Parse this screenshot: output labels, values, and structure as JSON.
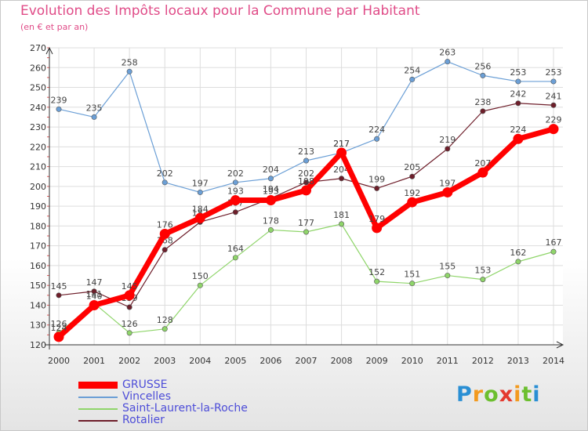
{
  "chart_data": {
    "type": "line",
    "title": "Evolution des Impôts locaux pour la Commune par Habitant",
    "subtitle": "(en € et par an)",
    "x": [
      "2000",
      "2001",
      "2002",
      "2003",
      "2004",
      "2005",
      "2006",
      "2007",
      "2008",
      "2009",
      "2010",
      "2011",
      "2012",
      "2013",
      "2014"
    ],
    "ylim": [
      120,
      270
    ],
    "yticks": [
      120,
      130,
      140,
      150,
      160,
      170,
      180,
      190,
      200,
      210,
      220,
      230,
      240,
      250,
      260,
      270
    ],
    "grid": true,
    "legend_position": "bottom-left",
    "series": [
      {
        "name": "GRUSSE",
        "color": "#ff0000",
        "values": [
          124,
          140,
          145,
          176,
          184,
          193,
          193,
          198,
          217,
          179,
          192,
          197,
          207,
          224,
          229
        ]
      },
      {
        "name": "Vincelles",
        "color": "#6b9fd6",
        "values": [
          239,
          235,
          258,
          202,
          197,
          202,
          204,
          213,
          217,
          224,
          254,
          263,
          256,
          253,
          253
        ]
      },
      {
        "name": "Saint-Laurent-la-Roche",
        "color": "#8fd56a",
        "values": [
          126,
          141,
          126,
          128,
          150,
          164,
          178,
          177,
          181,
          152,
          151,
          155,
          153,
          162,
          167
        ]
      },
      {
        "name": "Rotalier",
        "color": "#6e1e2a",
        "values": [
          145,
          147,
          139,
          168,
          182,
          187,
          194,
          202,
          204,
          199,
          205,
          219,
          238,
          242,
          241
        ]
      }
    ]
  },
  "brand": {
    "letters": [
      "P",
      "r",
      "o",
      "x",
      "i",
      "t",
      "i"
    ],
    "colors": [
      "#2a8fd4",
      "#f39a1f",
      "#6cbf2f",
      "#e43a2f",
      "#f39a1f",
      "#6cbf2f",
      "#2a8fd4"
    ]
  }
}
